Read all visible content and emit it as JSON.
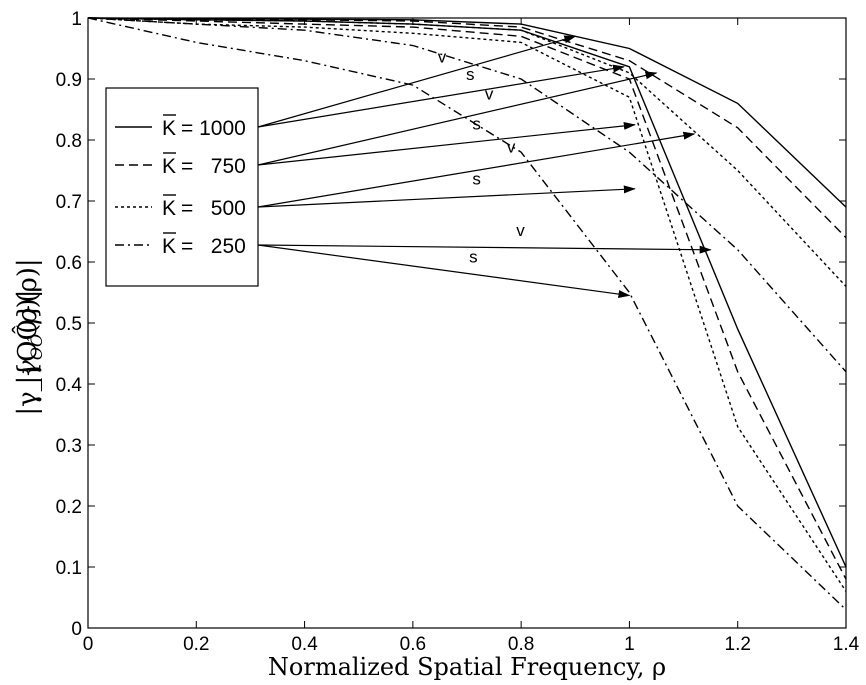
{
  "chart_data": {
    "type": "line",
    "xlabel": "Normalized Spatial Frequency, ρ",
    "ylabel": "|γ_{OÔ}(ρ)|",
    "xlim": [
      0,
      1.4
    ],
    "ylim": [
      0,
      1
    ],
    "xticks": [
      "0",
      "0.2",
      "0.4",
      "0.6",
      "0.8",
      "1",
      "1.2",
      "1.4"
    ],
    "yticks": [
      "0",
      "0.1",
      "0.2",
      "0.3",
      "0.4",
      "0.5",
      "0.6",
      "0.7",
      "0.8",
      "0.9",
      "1"
    ],
    "grid": false,
    "legend_position": "upper-left",
    "x": [
      0,
      0.2,
      0.4,
      0.6,
      0.8,
      1.0,
      1.2,
      1.4
    ],
    "series": [
      {
        "name": "K̄ = 1000",
        "label": "s",
        "style": "solid",
        "values": [
          1,
          0.997,
          0.995,
          0.99,
          0.98,
          0.92,
          0.49,
          0.1
        ]
      },
      {
        "name": "K̄ = 1000",
        "label": "v",
        "style": "solid",
        "values": [
          1,
          0.999,
          0.998,
          0.997,
          0.99,
          0.95,
          0.86,
          0.69
        ]
      },
      {
        "name": "K̄ = 750",
        "label": "s",
        "style": "dashed",
        "values": [
          1,
          0.995,
          0.99,
          0.985,
          0.97,
          0.9,
          0.42,
          0.08
        ]
      },
      {
        "name": "K̄ = 750",
        "label": "v",
        "style": "dashed",
        "values": [
          1,
          0.998,
          0.997,
          0.995,
          0.985,
          0.93,
          0.82,
          0.64
        ]
      },
      {
        "name": "K̄ = 500",
        "label": "s",
        "style": "dotted",
        "values": [
          1,
          0.99,
          0.985,
          0.975,
          0.96,
          0.87,
          0.33,
          0.06
        ]
      },
      {
        "name": "K̄ = 500",
        "label": "v",
        "style": "dotted",
        "values": [
          1,
          0.997,
          0.995,
          0.99,
          0.98,
          0.91,
          0.75,
          0.56
        ]
      },
      {
        "name": "K̄ = 250",
        "label": "s",
        "style": "dashdot",
        "values": [
          1,
          0.96,
          0.93,
          0.89,
          0.78,
          0.55,
          0.2,
          0.03
        ]
      },
      {
        "name": "K̄ = 250",
        "label": "v",
        "style": "dashdot",
        "values": [
          1,
          0.99,
          0.98,
          0.955,
          0.9,
          0.78,
          0.62,
          0.42
        ]
      }
    ],
    "legend": [
      {
        "label": "K̄ = 1000",
        "symbol": "K",
        "eq": "= 1000",
        "style": "solid"
      },
      {
        "label": "K̄ =   750",
        "symbol": "K",
        "eq": "=   750",
        "style": "dashed"
      },
      {
        "label": "K̄ =   500",
        "symbol": "K",
        "eq": "=   500",
        "style": "dotted"
      },
      {
        "label": "K̄ =   250",
        "symbol": "K",
        "eq": "=   250",
        "style": "dashdot"
      }
    ],
    "annotations": [
      {
        "text": "v",
        "target_x": 0.9,
        "target_y": 0.97
      },
      {
        "text": "s",
        "target_x": 0.99,
        "target_y": 0.92
      },
      {
        "text": "v",
        "target_x": 1.05,
        "target_y": 0.91
      },
      {
        "text": "s",
        "target_x": 1.01,
        "target_y": 0.825
      },
      {
        "text": "v",
        "target_x": 1.12,
        "target_y": 0.81
      },
      {
        "text": "s",
        "target_x": 1.01,
        "target_y": 0.72
      },
      {
        "text": "v",
        "target_x": 1.15,
        "target_y": 0.62
      },
      {
        "text": "s",
        "target_x": 1.0,
        "target_y": 0.545
      }
    ]
  }
}
